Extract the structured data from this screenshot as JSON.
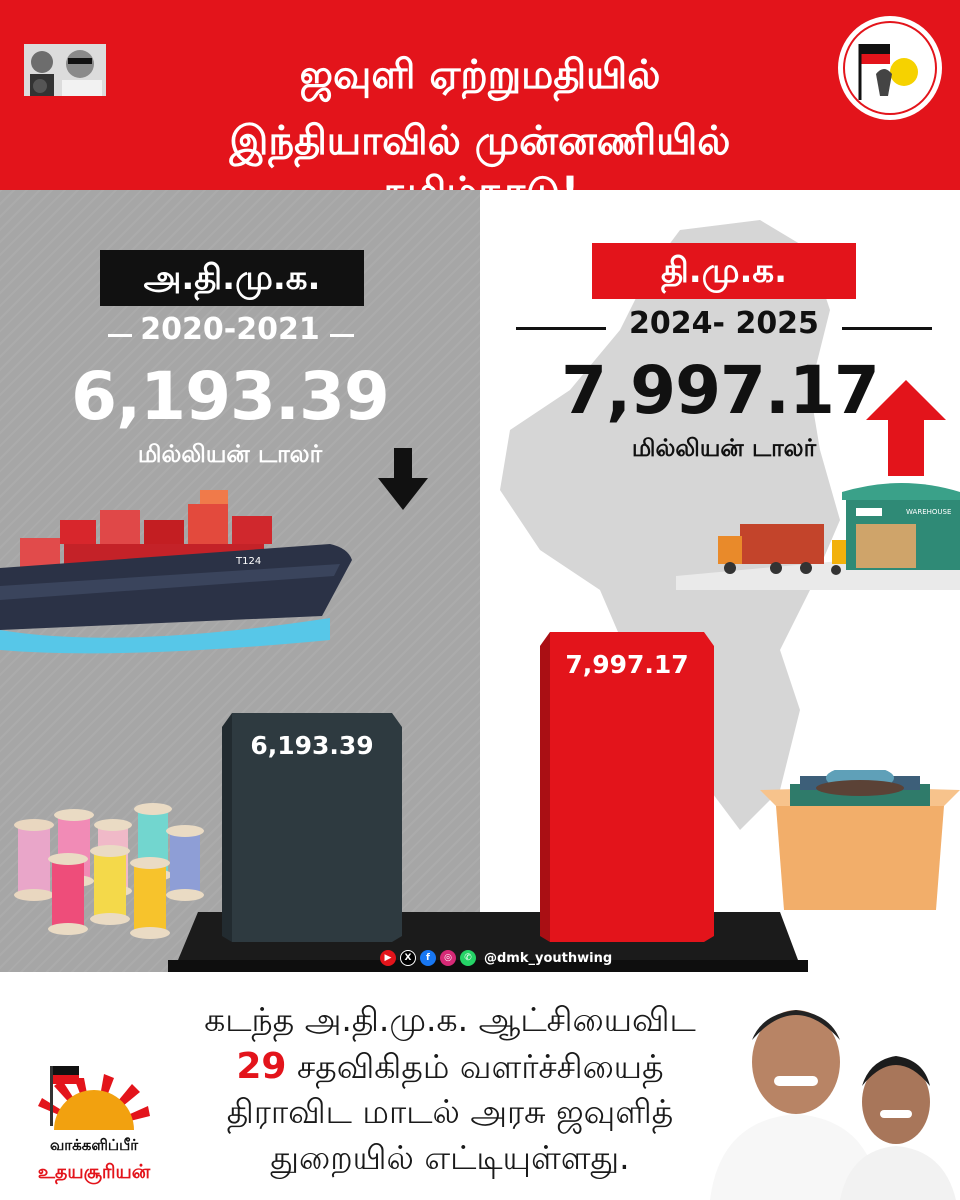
{
  "header": {
    "title_line1": "ஜவுளி ஏற்றுமதியில்",
    "title_line2": "இந்தியாவில் முன்னணியில் தமிழ்நாடு!"
  },
  "left_panel": {
    "party": "அ.தி.மு.க.",
    "period": "2020-2021",
    "value": "6,193.39",
    "unit": "மில்லியன் டாலர்",
    "trend": "down",
    "ship_text": "T124"
  },
  "right_panel": {
    "party": "தி.மு.க.",
    "period": "2024- 2025",
    "value": "7,997.17",
    "unit": "மில்லியன் டாலர்",
    "trend": "up",
    "warehouse_text": "WAREHOUSE"
  },
  "chart_data": {
    "type": "bar",
    "categories": [
      "அ.தி.மு.க.",
      "தி.மு.க."
    ],
    "values": [
      6193.39,
      7997.17
    ],
    "value_labels": [
      "6,193.39",
      "7,997.17"
    ],
    "colors": [
      "#2e3a40",
      "#e3141b"
    ]
  },
  "social": {
    "handle": "@dmk_youthwing",
    "icons": [
      "youtube-icon",
      "x-icon",
      "facebook-icon",
      "instagram-icon",
      "whatsapp-icon"
    ]
  },
  "footer": {
    "line1": "கடந்த அ.தி.மு.க. ஆட்சியைவிட",
    "percent": "29",
    "line2_rest": " சதவிகிதம் வளர்ச்சியைத்",
    "line3": "திராவிட மாடல் அரசு ஜவுளித்",
    "line4": "துறையில் எட்டியுள்ளது."
  },
  "logo_bottom": {
    "line1": "வாக்களிப்பீர்",
    "line2": "உதயசூரியன்"
  },
  "colors": {
    "red": "#e3141b",
    "dark": "#111111",
    "slate": "#2e3a40"
  }
}
